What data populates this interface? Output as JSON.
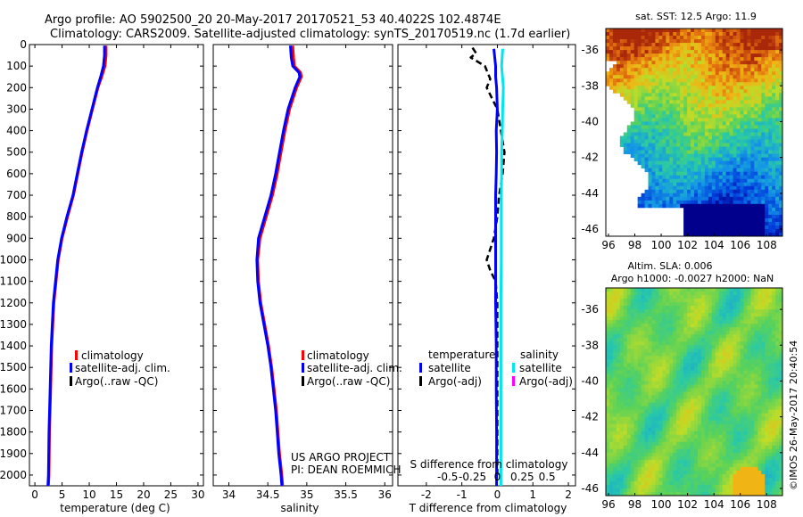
{
  "header": {
    "line1": "Argo profile: AO 5902500_20 20-May-2017 20170521_53 40.4022S 102.4874E",
    "line2": "Climatology: CARS2009. Satellite-adjusted climatology: synTS_20170519.nc (1.7d earlier)"
  },
  "side_label": "©IMOS 26-May-2017 20:40:54",
  "credits": {
    "line1": "US ARGO PROJECT",
    "line2": "PI: DEAN ROEMMICH"
  },
  "colors": {
    "climatology": "#ff0000",
    "satellite": "#0000ff",
    "argo": "#000000",
    "sat_salinity": "#00e5ee",
    "argo_salinity": "#ff00ff"
  },
  "chart_data": [
    {
      "type": "line",
      "id": "temperature-profile",
      "xlabel": "temperature (deg C)",
      "ylabel": "",
      "xlim": [
        -1,
        31
      ],
      "ylim": [
        0,
        2050
      ],
      "xticks": [
        0,
        5,
        10,
        15,
        20,
        25,
        30
      ],
      "yticks": [
        0,
        100,
        200,
        300,
        400,
        500,
        600,
        700,
        800,
        900,
        1000,
        1100,
        1200,
        1300,
        1400,
        1500,
        1600,
        1700,
        1800,
        1900,
        2000
      ],
      "legend": [
        "climatology",
        "satellite-adj. clim.",
        "Argo(..raw -QC)"
      ],
      "legend_position": "lower-middle",
      "series": [
        {
          "name": "climatology",
          "depth": [
            5,
            50,
            100,
            150,
            200,
            300,
            400,
            500,
            600,
            700,
            800,
            900,
            1000,
            1200,
            1400,
            1600,
            1800,
            2000,
            2050
          ],
          "values": [
            13.1,
            13.1,
            12.9,
            12.3,
            11.6,
            10.6,
            9.6,
            8.7,
            7.9,
            7.1,
            6.0,
            5.0,
            4.3,
            3.5,
            3.1,
            2.9,
            2.7,
            2.6,
            2.5
          ]
        },
        {
          "name": "satellite-adj. clim.",
          "depth": [
            5,
            50,
            100,
            150,
            200,
            300,
            400,
            500,
            600,
            700,
            800,
            900,
            1000,
            1200,
            1400,
            1600,
            1800,
            2000,
            2050
          ],
          "values": [
            12.8,
            12.8,
            12.6,
            12.1,
            11.5,
            10.5,
            9.5,
            8.6,
            7.8,
            7.0,
            5.9,
            4.9,
            4.2,
            3.4,
            3.0,
            2.8,
            2.6,
            2.5,
            2.4
          ]
        }
      ]
    },
    {
      "type": "line",
      "id": "salinity-profile",
      "xlabel": "salinity",
      "xlim": [
        33.8,
        36.1
      ],
      "ylim": [
        0,
        2050
      ],
      "xticks": [
        "34",
        "34.5",
        "35",
        "35.5",
        "36"
      ],
      "legend": [
        "climatology",
        "satellite-adj. clim.",
        "Argo(..raw -QC)"
      ],
      "legend_position": "lower-right",
      "series": [
        {
          "name": "climatology",
          "depth": [
            5,
            60,
            100,
            130,
            150,
            200,
            300,
            400,
            500,
            600,
            700,
            800,
            900,
            1000,
            1100,
            1200,
            1300,
            1400,
            1500,
            1600,
            1700,
            1800,
            1900,
            2000,
            2050
          ],
          "values": [
            34.82,
            34.83,
            34.84,
            34.92,
            34.93,
            34.87,
            34.78,
            34.72,
            34.67,
            34.62,
            34.56,
            34.48,
            34.4,
            34.37,
            34.38,
            34.41,
            34.46,
            34.51,
            34.55,
            34.58,
            34.61,
            34.63,
            34.65,
            34.68,
            34.69
          ]
        },
        {
          "name": "satellite-adj. clim.",
          "depth": [
            5,
            60,
            100,
            130,
            150,
            200,
            300,
            400,
            500,
            600,
            700,
            800,
            900,
            1000,
            1100,
            1200,
            1300,
            1400,
            1500,
            1600,
            1700,
            1800,
            1900,
            2000,
            2050
          ],
          "values": [
            34.79,
            34.8,
            34.82,
            34.9,
            34.91,
            34.85,
            34.76,
            34.7,
            34.65,
            34.6,
            34.54,
            34.46,
            34.38,
            34.36,
            34.37,
            34.4,
            34.45,
            34.5,
            34.54,
            34.57,
            34.6,
            34.62,
            34.64,
            34.67,
            34.68
          ]
        }
      ]
    },
    {
      "type": "line",
      "id": "difference-profile",
      "xlabel": "T difference from climatology",
      "xlabel_top": "S difference from climatology",
      "xlim": [
        -2.8,
        2.2
      ],
      "ylim": [
        0,
        2050
      ],
      "xticks": [
        "-2",
        "-1",
        "0",
        "1",
        "2"
      ],
      "xticks_salinity": [
        "-0.5",
        "-0.25",
        "0",
        "0.25",
        "0.5"
      ],
      "legend": {
        "temperature_title": "temperature",
        "salinity_title": "salinity",
        "items": [
          "satellite",
          "Argo(-adj)",
          "satellite",
          "Argo(-adj)"
        ]
      },
      "series": [
        {
          "name": "T satellite",
          "depth": [
            20,
            100,
            150,
            200,
            300,
            400,
            500,
            600,
            700,
            800,
            1000,
            1200,
            1400,
            1600,
            1800,
            2000,
            2050
          ],
          "values": [
            -0.1,
            -0.05,
            -0.05,
            -0.02,
            0.0,
            -0.03,
            -0.02,
            -0.03,
            -0.05,
            -0.05,
            -0.05,
            -0.05,
            -0.03,
            -0.03,
            -0.02,
            -0.02,
            -0.02
          ]
        },
        {
          "name": "S satellite",
          "depth": [
            20,
            100,
            200,
            300,
            400,
            500,
            600,
            700,
            800,
            1000,
            1200,
            1400,
            1600,
            1800,
            2000,
            2050
          ],
          "values": [
            0.15,
            0.12,
            0.17,
            0.15,
            0.14,
            0.12,
            0.12,
            0.11,
            0.11,
            0.11,
            0.1,
            0.1,
            0.1,
            0.1,
            0.1,
            0.1
          ]
        },
        {
          "name": "Argo",
          "depth": [
            15,
            40,
            60,
            100,
            160,
            200,
            300,
            400,
            500,
            600,
            700,
            800,
            900,
            1000,
            1050,
            1100,
            1200,
            1300,
            1400,
            1600,
            1800,
            2000
          ],
          "values": [
            -0.7,
            -0.6,
            -0.75,
            -0.35,
            -0.2,
            -0.3,
            0.0,
            0.1,
            0.2,
            0.15,
            0.05,
            0.0,
            -0.1,
            -0.3,
            -0.2,
            -0.05,
            0.0,
            0.0,
            0.0,
            0.0,
            0.0,
            0.0
          ]
        }
      ]
    },
    {
      "type": "heatmap",
      "id": "sst-map",
      "title": "sat. SST: 12.5 Argo: 11.9",
      "xlim": [
        95.8,
        109.2
      ],
      "ylim": [
        -46.4,
        -34.8
      ],
      "xticks": [
        "96",
        "98",
        "100",
        "102",
        "104",
        "106",
        "108"
      ],
      "yticks": [
        "-36",
        "-38",
        "-40",
        "-42",
        "-44",
        "-46"
      ]
    },
    {
      "type": "heatmap",
      "id": "sla-map",
      "title": "Altim. SLA: 0.006",
      "subtitle": "Argo h1000: -0.0027 h2000: NaN",
      "xlim": [
        95.8,
        109.2
      ],
      "ylim": [
        -46.4,
        -34.8
      ],
      "xticks": [
        "96",
        "98",
        "100",
        "102",
        "104",
        "106",
        "108"
      ],
      "yticks": [
        "-36",
        "-38",
        "-40",
        "-42",
        "-44",
        "-46"
      ]
    }
  ]
}
